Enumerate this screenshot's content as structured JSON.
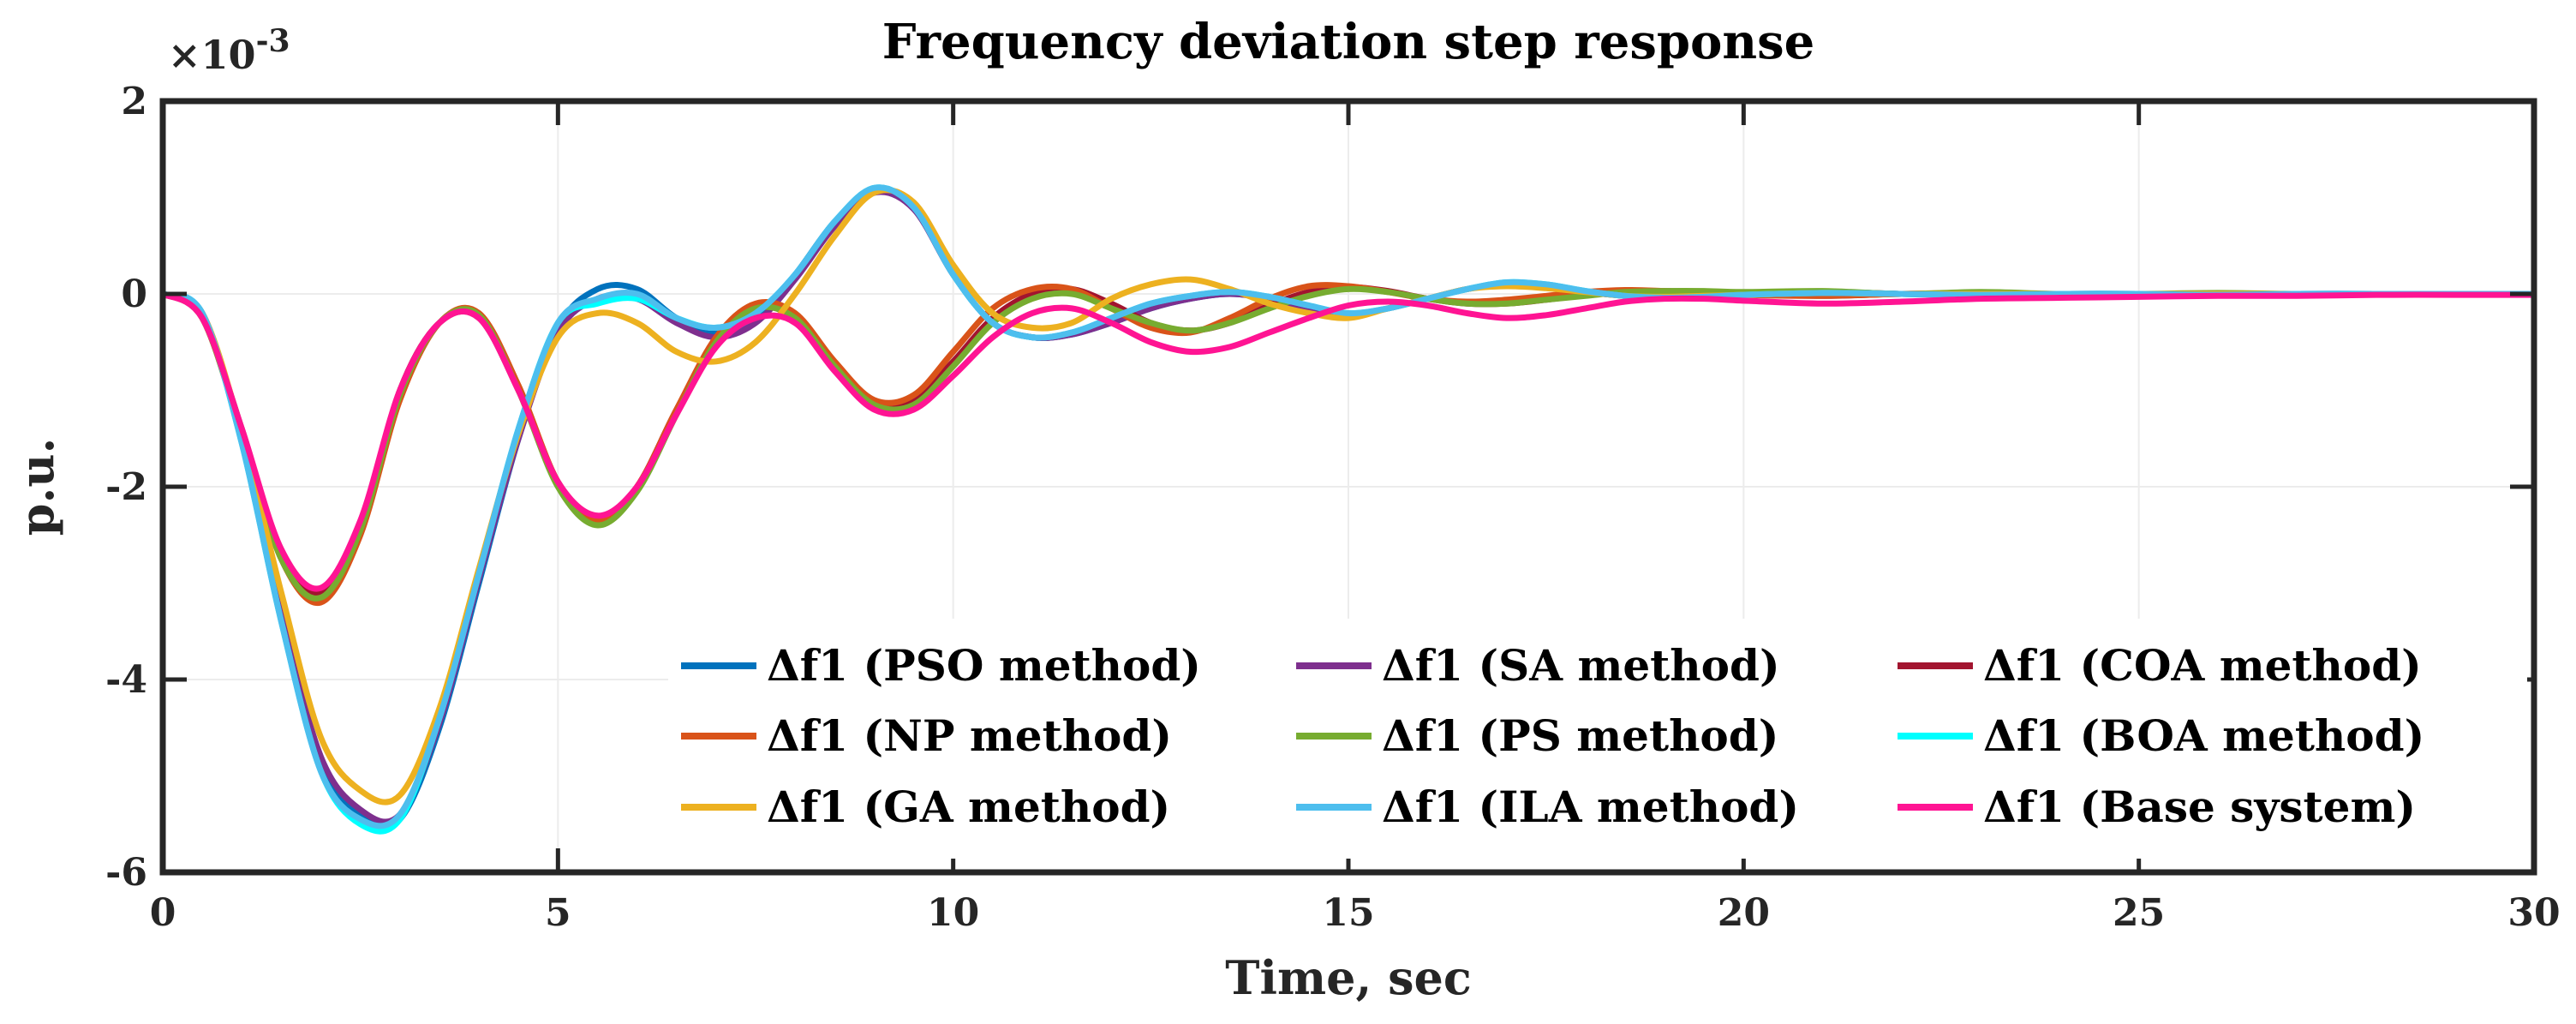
{
  "chart_data": {
    "type": "line",
    "title": "Frequency deviation step response",
    "xlabel": "Time, sec",
    "ylabel": "p.u.",
    "y_exponent_label": "×10",
    "y_exponent_power": "-3",
    "xlim": [
      0,
      30
    ],
    "ylim": [
      -6,
      2
    ],
    "grid": true,
    "legend_position": "bottom-right",
    "x_ticks": [
      0,
      5,
      10,
      15,
      20,
      25,
      30
    ],
    "x_tick_labels": [
      "0",
      "5",
      "10",
      "15",
      "20",
      "25",
      "30"
    ],
    "y_ticks": [
      2,
      0,
      -2,
      -4,
      -6
    ],
    "y_tick_labels": [
      "2",
      "0",
      "-2",
      "-4",
      "-6"
    ],
    "x": [
      0,
      0.5,
      1,
      1.5,
      2,
      2.5,
      3,
      3.5,
      4,
      4.5,
      5,
      5.5,
      6,
      6.5,
      7,
      7.5,
      8,
      8.5,
      9,
      9.5,
      10,
      10.5,
      11,
      11.5,
      12,
      12.5,
      13,
      13.5,
      14,
      14.5,
      15,
      15.5,
      16,
      16.5,
      17,
      17.5,
      18,
      18.5,
      19,
      19.5,
      20,
      21,
      22,
      23,
      24,
      25,
      26,
      27,
      28,
      29,
      30
    ],
    "series": [
      {
        "name": "Δf1 (PSO method)",
        "color": "#0072BD",
        "values": [
          0,
          -0.2,
          -1.5,
          -3.3,
          -4.9,
          -5.4,
          -5.45,
          -4.5,
          -3.0,
          -1.5,
          -0.35,
          0.05,
          0.05,
          -0.25,
          -0.4,
          -0.25,
          0.2,
          0.75,
          1.08,
          0.9,
          0.2,
          -0.3,
          -0.45,
          -0.42,
          -0.3,
          -0.15,
          -0.05,
          0.0,
          -0.05,
          -0.15,
          -0.22,
          -0.15,
          -0.05,
          0.05,
          0.1,
          0.08,
          0.02,
          -0.02,
          -0.04,
          -0.03,
          -0.01,
          0.02,
          0.0,
          -0.01,
          0.0,
          0.0,
          -0.01,
          0.0,
          0.0,
          0.0,
          0.0
        ]
      },
      {
        "name": "Δf1 (SA method)",
        "color": "#7E2F8E",
        "values": [
          0,
          -0.2,
          -1.5,
          -3.3,
          -4.8,
          -5.35,
          -5.4,
          -4.45,
          -2.95,
          -1.5,
          -0.4,
          -0.05,
          -0.05,
          -0.3,
          -0.45,
          -0.3,
          0.15,
          0.7,
          1.05,
          0.88,
          0.2,
          -0.3,
          -0.45,
          -0.42,
          -0.3,
          -0.15,
          -0.05,
          0.0,
          -0.05,
          -0.15,
          -0.22,
          -0.15,
          -0.05,
          0.05,
          0.1,
          0.08,
          0.02,
          -0.02,
          -0.04,
          -0.03,
          -0.01,
          0.02,
          0.0,
          -0.01,
          0.0,
          0.0,
          -0.01,
          0.0,
          0.0,
          0.0,
          0.0
        ]
      },
      {
        "name": "Δf1 (COA method)",
        "color": "#A2142F",
        "values": [
          0,
          -0.25,
          -1.4,
          -2.7,
          -3.1,
          -2.4,
          -1.0,
          -0.3,
          -0.25,
          -1.0,
          -1.95,
          -2.35,
          -2.0,
          -1.2,
          -0.5,
          -0.15,
          -0.25,
          -0.75,
          -1.15,
          -1.1,
          -0.7,
          -0.25,
          0.0,
          0.05,
          -0.1,
          -0.3,
          -0.38,
          -0.3,
          -0.12,
          0.02,
          0.07,
          0.03,
          -0.05,
          -0.1,
          -0.1,
          -0.06,
          -0.01,
          0.02,
          0.03,
          0.02,
          0.0,
          -0.02,
          0.0,
          0.0,
          0.0,
          0.0,
          0.0,
          0.0,
          0.0,
          0.0,
          0.0
        ]
      },
      {
        "name": "Δf1 (NP method)",
        "color": "#D95319",
        "values": [
          0,
          -0.25,
          -1.45,
          -2.75,
          -3.2,
          -2.5,
          -1.1,
          -0.3,
          -0.2,
          -0.95,
          -1.95,
          -2.35,
          -2.0,
          -1.2,
          -0.45,
          -0.1,
          -0.2,
          -0.7,
          -1.1,
          -1.05,
          -0.6,
          -0.15,
          0.05,
          0.05,
          -0.15,
          -0.35,
          -0.4,
          -0.25,
          -0.05,
          0.08,
          0.08,
          0.02,
          -0.05,
          -0.08,
          -0.06,
          -0.02,
          0.02,
          0.04,
          0.03,
          0.01,
          -0.01,
          -0.02,
          0.0,
          0.01,
          0.0,
          0.0,
          0.0,
          0.0,
          0.0,
          0.0,
          0.0
        ]
      },
      {
        "name": "Δf1 (PS method)",
        "color": "#77AC30",
        "values": [
          0,
          -0.25,
          -1.45,
          -2.75,
          -3.15,
          -2.45,
          -1.05,
          -0.3,
          -0.22,
          -1.0,
          -2.0,
          -2.4,
          -2.05,
          -1.25,
          -0.5,
          -0.15,
          -0.25,
          -0.75,
          -1.15,
          -1.15,
          -0.75,
          -0.3,
          -0.05,
          0.0,
          -0.15,
          -0.3,
          -0.38,
          -0.3,
          -0.15,
          -0.02,
          0.05,
          0.02,
          -0.05,
          -0.1,
          -0.1,
          -0.06,
          -0.02,
          0.02,
          0.03,
          0.03,
          0.02,
          0.03,
          0.0,
          0.02,
          0.0,
          0.0,
          0.01,
          0.0,
          0.0,
          0.0,
          0.0
        ]
      },
      {
        "name": "Δf1 (BOA method)",
        "color": "#00FFFF",
        "values": [
          0,
          -0.2,
          -1.55,
          -3.4,
          -4.95,
          -5.5,
          -5.45,
          -4.4,
          -2.9,
          -1.4,
          -0.3,
          -0.1,
          -0.05,
          -0.25,
          -0.35,
          -0.2,
          0.2,
          0.75,
          1.1,
          0.9,
          0.2,
          -0.3,
          -0.45,
          -0.4,
          -0.25,
          -0.1,
          -0.02,
          0.02,
          -0.03,
          -0.12,
          -0.2,
          -0.15,
          -0.05,
          0.05,
          0.12,
          0.1,
          0.03,
          -0.02,
          -0.04,
          -0.03,
          -0.01,
          0.01,
          0.0,
          -0.01,
          0.0,
          0.0,
          -0.01,
          0.0,
          0.0,
          0.0,
          0.0
        ]
      },
      {
        "name": "Δf1 (GA method)",
        "color": "#EDB120",
        "values": [
          0,
          -0.2,
          -1.45,
          -3.1,
          -4.6,
          -5.15,
          -5.2,
          -4.3,
          -2.85,
          -1.45,
          -0.45,
          -0.2,
          -0.3,
          -0.6,
          -0.7,
          -0.5,
          0.0,
          0.6,
          1.05,
          0.95,
          0.3,
          -0.2,
          -0.35,
          -0.3,
          -0.05,
          0.1,
          0.15,
          0.05,
          -0.1,
          -0.2,
          -0.25,
          -0.15,
          -0.05,
          0.05,
          0.08,
          0.06,
          0.02,
          -0.02,
          -0.03,
          -0.02,
          -0.01,
          0.01,
          0.0,
          0.0,
          0.0,
          0.0,
          0.0,
          0.0,
          0.0,
          0.0,
          0.0
        ]
      },
      {
        "name": "Δf1 (ILA method)",
        "color": "#4DBEEE",
        "values": [
          0,
          -0.2,
          -1.55,
          -3.4,
          -4.95,
          -5.45,
          -5.4,
          -4.4,
          -2.9,
          -1.4,
          -0.3,
          -0.05,
          0.0,
          -0.25,
          -0.35,
          -0.2,
          0.2,
          0.75,
          1.1,
          0.9,
          0.2,
          -0.3,
          -0.45,
          -0.4,
          -0.25,
          -0.1,
          -0.02,
          0.02,
          -0.03,
          -0.12,
          -0.2,
          -0.15,
          -0.05,
          0.05,
          0.12,
          0.1,
          0.03,
          -0.02,
          -0.04,
          -0.03,
          -0.01,
          0.01,
          0.0,
          -0.01,
          0.0,
          0.0,
          -0.01,
          0.0,
          0.0,
          0.0,
          0.0
        ]
      },
      {
        "name": "Δf1 (Base system)",
        "color": "#FF1493",
        "values": [
          0,
          -0.25,
          -1.4,
          -2.65,
          -3.05,
          -2.35,
          -1.0,
          -0.3,
          -0.25,
          -1.0,
          -1.95,
          -2.3,
          -2.0,
          -1.25,
          -0.55,
          -0.25,
          -0.3,
          -0.8,
          -1.2,
          -1.2,
          -0.85,
          -0.45,
          -0.2,
          -0.15,
          -0.3,
          -0.5,
          -0.6,
          -0.55,
          -0.4,
          -0.25,
          -0.12,
          -0.08,
          -0.12,
          -0.2,
          -0.25,
          -0.22,
          -0.15,
          -0.08,
          -0.05,
          -0.05,
          -0.07,
          -0.1,
          -0.08,
          -0.05,
          -0.04,
          -0.03,
          -0.02,
          -0.02,
          -0.01,
          -0.01,
          -0.01
        ]
      }
    ]
  }
}
